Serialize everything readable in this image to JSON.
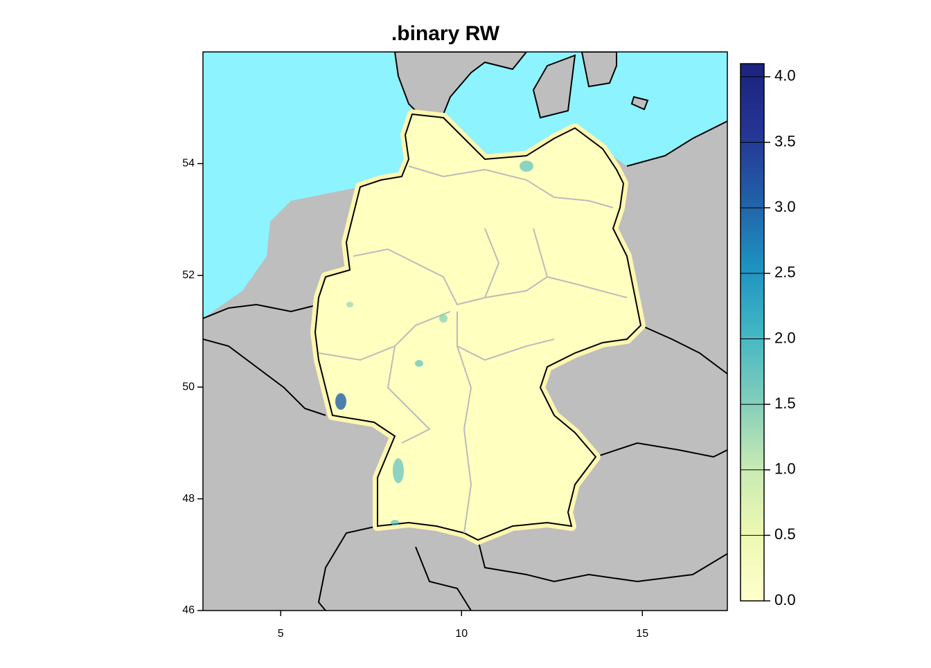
{
  "chart_data": {
    "type": "map",
    "title": ".binary RW",
    "xlim": [
      2.85,
      17.35
    ],
    "xticks": [
      5,
      10,
      15
    ],
    "ylim": [
      46,
      56
    ],
    "yticks": [
      46,
      48,
      50,
      52,
      54
    ],
    "colorbar": {
      "lim": [
        0,
        4.1
      ],
      "ticks": [
        {
          "value": 0,
          "label": "0.0"
        },
        {
          "value": 0.5,
          "label": "0.5"
        },
        {
          "value": 1,
          "label": "1.0"
        },
        {
          "value": 1.5,
          "label": "1.5"
        },
        {
          "value": 2,
          "label": "2.0"
        },
        {
          "value": 2.5,
          "label": "2.5"
        },
        {
          "value": 3,
          "label": "3.0"
        },
        {
          "value": 3.5,
          "label": "3.5"
        },
        {
          "value": 4,
          "label": "4.0"
        }
      ],
      "colors": [
        "#FFFFCC",
        "#EDF8B1",
        "#C7E9B4",
        "#7FCDBB",
        "#41B6C4",
        "#1D91C0",
        "#225EA8",
        "#253494",
        "#1A237E"
      ]
    },
    "sea_color": "#8DF3FF",
    "land_color": "#BEBEBE",
    "region_color": "#FFFFBF"
  }
}
